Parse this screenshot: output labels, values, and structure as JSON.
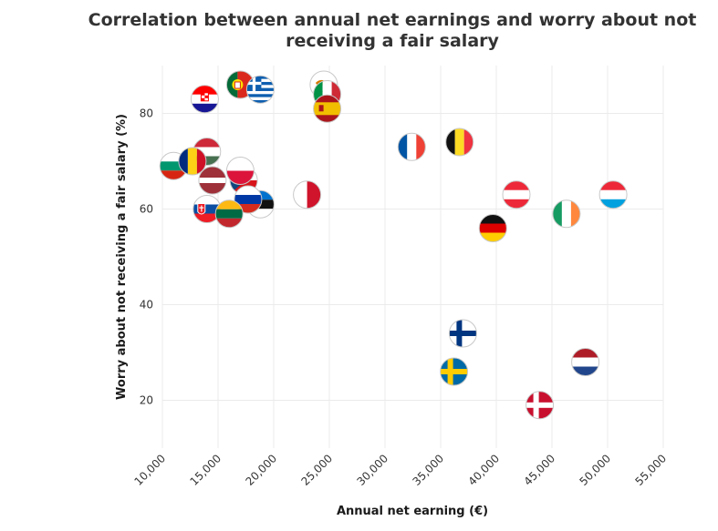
{
  "chart_data": {
    "type": "scatter",
    "title_lines": [
      "Correlation between annual net earnings and worry about not",
      "receiving a fair salary"
    ],
    "xlabel": "Annual net earning (€)",
    "ylabel": "Worry about not receiving a fair salary (%)",
    "xlim": [
      10000,
      55000
    ],
    "ylim": [
      10,
      90
    ],
    "x_ticks": [
      10000,
      15000,
      20000,
      25000,
      30000,
      35000,
      40000,
      45000,
      50000,
      55000
    ],
    "x_tick_labels": [
      "10,000",
      "15,000",
      "20,000",
      "25,000",
      "30,000",
      "35,000",
      "40,000",
      "45,000",
      "50,000",
      "55,000"
    ],
    "y_ticks": [
      20,
      40,
      60,
      80
    ],
    "y_tick_labels": [
      "20",
      "40",
      "60",
      "80"
    ],
    "grid": true,
    "points": [
      {
        "country": "Cyprus",
        "flag": "cyprus",
        "x": 24500,
        "y": 86
      },
      {
        "country": "Italy",
        "flag": "italy",
        "x": 24800,
        "y": 84
      },
      {
        "country": "Spain",
        "flag": "spain",
        "x": 24800,
        "y": 81
      },
      {
        "country": "Portugal",
        "flag": "portugal",
        "x": 17000,
        "y": 86
      },
      {
        "country": "Greece",
        "flag": "greece",
        "x": 18800,
        "y": 85
      },
      {
        "country": "Croatia",
        "flag": "croatia",
        "x": 13800,
        "y": 83
      },
      {
        "country": "Hungary",
        "flag": "hungary",
        "x": 14000,
        "y": 72
      },
      {
        "country": "Bulgaria",
        "flag": "bulgaria",
        "x": 11000,
        "y": 69
      },
      {
        "country": "Romania",
        "flag": "romania",
        "x": 12700,
        "y": 70
      },
      {
        "country": "Latvia",
        "flag": "latvia",
        "x": 14500,
        "y": 66
      },
      {
        "country": "Czech Republic",
        "flag": "czech",
        "x": 17300,
        "y": 66
      },
      {
        "country": "Poland",
        "flag": "poland",
        "x": 17000,
        "y": 68
      },
      {
        "country": "Estonia",
        "flag": "estonia",
        "x": 18800,
        "y": 61
      },
      {
        "country": "Russia",
        "flag": "russia",
        "x": 17700,
        "y": 62
      },
      {
        "country": "Slovakia",
        "flag": "slovakia",
        "x": 14000,
        "y": 60
      },
      {
        "country": "Lithuania",
        "flag": "lithuania",
        "x": 16000,
        "y": 59
      },
      {
        "country": "Malta",
        "flag": "malta",
        "x": 23000,
        "y": 63
      },
      {
        "country": "France",
        "flag": "france",
        "x": 32400,
        "y": 73
      },
      {
        "country": "Belgium",
        "flag": "belgium",
        "x": 36700,
        "y": 74
      },
      {
        "country": "Austria",
        "flag": "austria",
        "x": 41800,
        "y": 63
      },
      {
        "country": "Luxembourg",
        "flag": "luxembourg",
        "x": 50500,
        "y": 63
      },
      {
        "country": "Ireland",
        "flag": "ireland",
        "x": 46300,
        "y": 59
      },
      {
        "country": "Germany",
        "flag": "germany",
        "x": 39700,
        "y": 56
      },
      {
        "country": "Finland",
        "flag": "finland",
        "x": 37000,
        "y": 34
      },
      {
        "country": "Sweden",
        "flag": "sweden",
        "x": 36200,
        "y": 26
      },
      {
        "country": "Netherlands",
        "flag": "netherlands",
        "x": 48000,
        "y": 28
      },
      {
        "country": "Denmark",
        "flag": "denmark",
        "x": 43900,
        "y": 19
      }
    ]
  }
}
